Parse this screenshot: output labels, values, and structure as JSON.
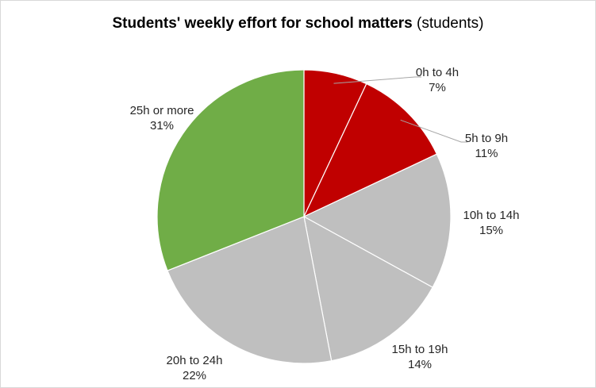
{
  "chart_data": {
    "type": "pie",
    "title": "Students' weekly effort for school matters",
    "subtitle": "(students)",
    "categories": [
      "0h to 4h",
      "5h to 9h",
      "10h to 14h",
      "15h to 19h",
      "20h to 24h",
      "25h or more"
    ],
    "values": [
      7,
      11,
      15,
      14,
      22,
      31
    ],
    "labels": [
      "7%",
      "11%",
      "15%",
      "14%",
      "22%",
      "31%"
    ],
    "colors": [
      "#c00000",
      "#c00000",
      "#bfbfbf",
      "#bfbfbf",
      "#bfbfbf",
      "#70ad47"
    ],
    "start_angle": "12 o'clock",
    "direction": "clockwise",
    "legend": "none (labels outside slices)"
  }
}
